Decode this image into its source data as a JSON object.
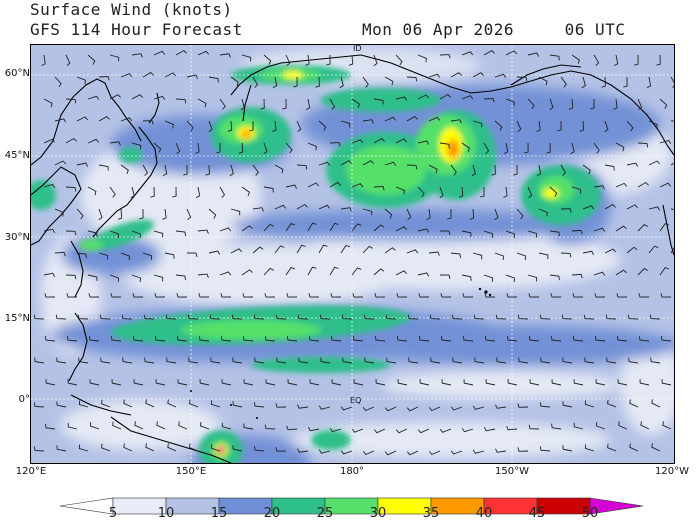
{
  "title": {
    "line1": "Surface Wind (knots)",
    "line2": "GFS 114 Hour Forecast",
    "datetime": "Mon 06 Apr 2026     06 UTC"
  },
  "map": {
    "lat_labels": [
      "60°N",
      "45°N",
      "30°N",
      "15°N",
      "0°"
    ],
    "lon_labels": [
      "120°E",
      "150°E",
      "180°",
      "150°W",
      "120°W"
    ],
    "annotations": [
      "ID",
      "EQ"
    ],
    "extent": {
      "lon_min": 120,
      "lon_max": 240,
      "lat_min": -10,
      "lat_max": 66
    },
    "features": [
      "Japan",
      "Philippines",
      "Aleutian Islands",
      "Alaska",
      "North America west coast",
      "Hawaii",
      "New Guinea"
    ]
  },
  "colorbar": {
    "ticks": [
      "5",
      "10",
      "15",
      "20",
      "25",
      "30",
      "35",
      "40",
      "45",
      "50"
    ],
    "bins": [
      {
        "from": 0,
        "to": 5,
        "color": "#ffffff"
      },
      {
        "from": 5,
        "to": 10,
        "color": "#e8ecf6"
      },
      {
        "from": 10,
        "to": 15,
        "color": "#b4c2e6"
      },
      {
        "from": 15,
        "to": 20,
        "color": "#6f8fd6"
      },
      {
        "from": 20,
        "to": 25,
        "color": "#2fbf8a"
      },
      {
        "from": 25,
        "to": 30,
        "color": "#54e06a"
      },
      {
        "from": 30,
        "to": 35,
        "color": "#ffff00"
      },
      {
        "from": 35,
        "to": 40,
        "color": "#ff9900"
      },
      {
        "from": 40,
        "to": 45,
        "color": "#ff3333"
      },
      {
        "from": 45,
        "to": 50,
        "color": "#cc0000"
      },
      {
        "from": 50,
        "to": 55,
        "color": "#d400d4"
      }
    ]
  }
}
